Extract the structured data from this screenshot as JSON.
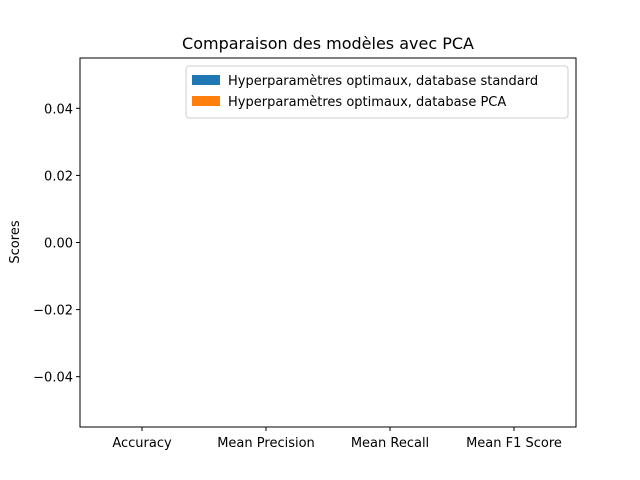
{
  "chart_data": {
    "type": "bar",
    "title": "Comparaison des modèles avec PCA",
    "xlabel": "",
    "ylabel": "Scores",
    "categories": [
      "Accuracy",
      "Mean Precision",
      "Mean Recall",
      "Mean F1 Score"
    ],
    "series": [
      {
        "name": "Hyperparamètres optimaux, database standard",
        "color": "#1f77b4",
        "values": [
          0,
          0,
          0,
          0
        ]
      },
      {
        "name": "Hyperparamètres optimaux, database PCA",
        "color": "#ff7f0e",
        "values": [
          0,
          0,
          0,
          0
        ]
      }
    ],
    "ylim": [
      -0.055,
      0.055
    ],
    "yticks": [
      -0.04,
      -0.02,
      0.0,
      0.02,
      0.04
    ],
    "ytick_labels": [
      "−0.04",
      "−0.02",
      "0.00",
      "0.02",
      "0.04"
    ],
    "grid": false,
    "legend_position": "top-right"
  }
}
